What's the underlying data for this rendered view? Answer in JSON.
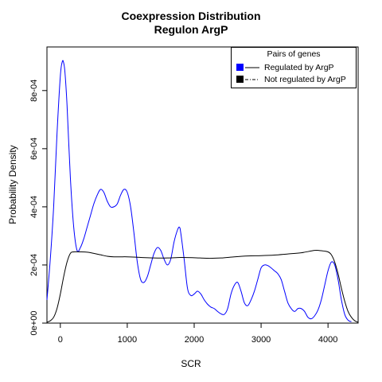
{
  "chart_data": {
    "type": "line",
    "title": "Coexpression Distribution",
    "subtitle": "Regulon ArgP",
    "xlabel": "SCR",
    "ylabel": "Probability Density",
    "xlim": [
      -200,
      4450
    ],
    "ylim": [
      0,
      0.00095
    ],
    "x_ticks": [
      0,
      1000,
      2000,
      3000,
      4000
    ],
    "x_tick_labels": [
      "0",
      "1000",
      "2000",
      "3000",
      "4000"
    ],
    "y_ticks": [
      0,
      0.0002,
      0.0004,
      0.0006,
      0.0008
    ],
    "y_tick_labels": [
      "0e+00",
      "2e-04",
      "4e-04",
      "6e-04",
      "8e-04"
    ],
    "legend": {
      "title": "Pairs of genes",
      "placement": "top-right",
      "entries": [
        "Regulated by  ArgP",
        "Not regulated by  ArgP"
      ]
    },
    "series": [
      {
        "name": "Regulated by  ArgP",
        "color": "#0000ff",
        "line_style": "solid",
        "x": [
          -200,
          -150,
          -100,
          -50,
          0,
          30,
          50,
          70,
          100,
          150,
          200,
          250,
          300,
          350,
          400,
          450,
          500,
          550,
          600,
          650,
          700,
          750,
          800,
          850,
          900,
          950,
          1000,
          1050,
          1100,
          1150,
          1200,
          1250,
          1300,
          1350,
          1400,
          1450,
          1500,
          1550,
          1600,
          1650,
          1700,
          1750,
          1780,
          1800,
          1850,
          1900,
          1950,
          2000,
          2050,
          2100,
          2150,
          2200,
          2250,
          2300,
          2350,
          2400,
          2450,
          2500,
          2550,
          2600,
          2650,
          2700,
          2750,
          2800,
          2850,
          2900,
          2950,
          3000,
          3050,
          3100,
          3150,
          3200,
          3250,
          3300,
          3350,
          3400,
          3450,
          3500,
          3550,
          3600,
          3650,
          3700,
          3750,
          3800,
          3850,
          3900,
          3950,
          4000,
          4050,
          4100,
          4150,
          4200,
          4250,
          4300,
          4350
        ],
        "values": [
          8e-05,
          0.00022,
          0.0004,
          0.00065,
          0.00085,
          0.0009,
          0.000895,
          0.00086,
          0.00075,
          0.0005,
          0.00033,
          0.00025,
          0.00026,
          0.00029,
          0.00033,
          0.00037,
          0.00041,
          0.00044,
          0.00046,
          0.00045,
          0.00042,
          0.0004,
          0.0004,
          0.00041,
          0.00044,
          0.00046,
          0.00045,
          0.0004,
          0.00031,
          0.00021,
          0.00015,
          0.00014,
          0.00016,
          0.0002,
          0.00024,
          0.00026,
          0.00025,
          0.00022,
          0.0002,
          0.00022,
          0.00028,
          0.00032,
          0.00033,
          0.00031,
          0.00022,
          0.00012,
          9.5e-05,
          0.0001,
          0.00011,
          0.0001,
          8e-05,
          6.5e-05,
          5.5e-05,
          5e-05,
          4e-05,
          3.2e-05,
          3e-05,
          5e-05,
          0.0001,
          0.00013,
          0.00014,
          0.00011,
          7e-05,
          6e-05,
          8e-05,
          0.00011,
          0.00015,
          0.00019,
          0.0002,
          0.000198,
          0.00019,
          0.00018,
          0.00017,
          0.00015,
          0.00011,
          7e-05,
          5e-05,
          4e-05,
          5e-05,
          5e-05,
          4e-05,
          2e-05,
          1.5e-05,
          2.5e-05,
          4.5e-05,
          8e-05,
          0.00013,
          0.00018,
          0.00021,
          0.0002,
          0.00015,
          8e-05,
          3e-05,
          1e-05,
          5e-06
        ]
      },
      {
        "name": "Not regulated by  ArgP",
        "color": "#000000",
        "line_style": "solid",
        "x": [
          -200,
          -150,
          -100,
          -50,
          0,
          50,
          100,
          150,
          200,
          300,
          400,
          500,
          600,
          700,
          800,
          900,
          1000,
          1200,
          1400,
          1600,
          1800,
          2000,
          2200,
          2400,
          2600,
          2800,
          3000,
          3200,
          3400,
          3600,
          3800,
          3900,
          4000,
          4050,
          4100,
          4150,
          4200,
          4250,
          4300,
          4350,
          4400,
          4450
        ],
        "values": [
          3e-06,
          8e-06,
          2e-05,
          5e-05,
          0.0001,
          0.00016,
          0.00021,
          0.00024,
          0.000245,
          0.000245,
          0.000244,
          0.00024,
          0.000235,
          0.00023,
          0.000228,
          0.000228,
          0.000228,
          0.000226,
          0.000224,
          0.000224,
          0.000226,
          0.000225,
          0.000223,
          0.000224,
          0.000228,
          0.000231,
          0.000232,
          0.000234,
          0.000238,
          0.000242,
          0.00025,
          0.000249,
          0.000245,
          0.000235,
          0.00021,
          0.00017,
          0.00012,
          7.5e-05,
          4e-05,
          2e-05,
          8e-06,
          3e-06
        ]
      }
    ],
    "grid": false
  }
}
